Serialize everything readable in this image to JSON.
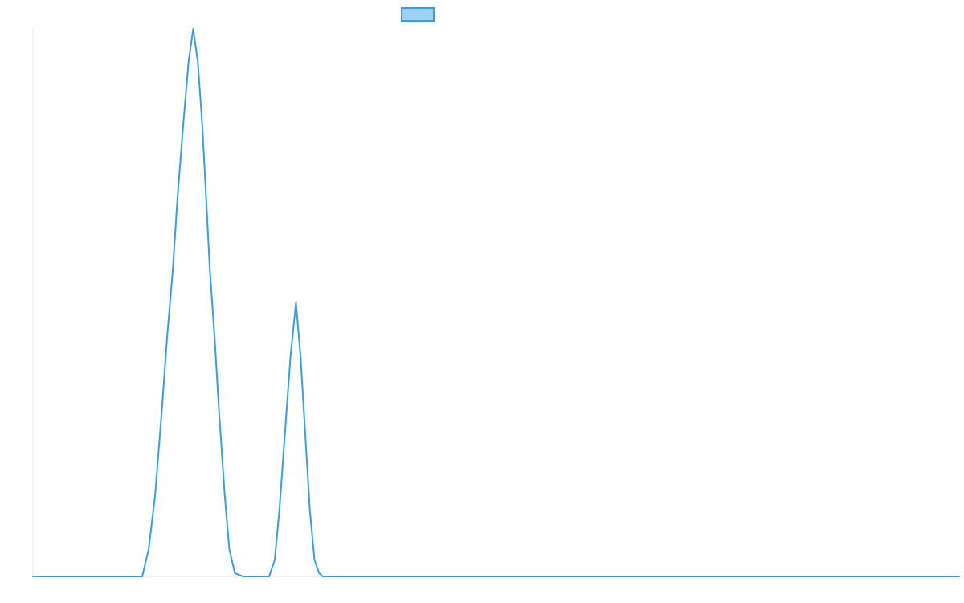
{
  "chart_data": {
    "type": "area",
    "title": "",
    "xlabel": "",
    "ylabel": "",
    "grid": false,
    "legend": {
      "placement": "top-center",
      "entries": [
        {
          "label": ""
        }
      ]
    },
    "xlim": [
      0,
      100
    ],
    "ylim": [
      0,
      100
    ],
    "series": [
      {
        "name": "",
        "color": "#3a9ddd",
        "fill": "#9ed2f4",
        "x": [
          0,
          11.8,
          12.5,
          13.2,
          13.9,
          14.5,
          15.1,
          15.6,
          16.2,
          16.8,
          17.3,
          17.8,
          18.3,
          18.7,
          19.1,
          19.6,
          20.1,
          20.7,
          21.2,
          21.8,
          22.7,
          25.5,
          26.1,
          26.6,
          27.2,
          27.8,
          28.4,
          28.9,
          29.4,
          29.9,
          30.4,
          30.9,
          31.3,
          32.0,
          100
        ],
        "y": [
          0,
          0,
          5,
          15,
          30,
          44,
          56,
          69,
          82,
          94,
          100,
          94,
          82,
          69,
          56,
          44,
          30,
          15,
          5,
          0.6,
          0,
          0,
          3,
          12,
          26,
          40,
          50,
          40,
          26,
          12,
          3,
          0.6,
          0,
          0,
          0
        ]
      }
    ]
  }
}
